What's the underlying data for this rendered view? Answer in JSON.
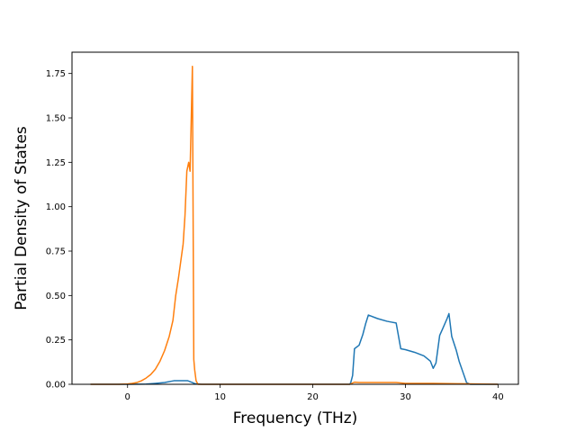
{
  "chart_data": {
    "type": "line",
    "title": "",
    "xlabel": "Frequency (THz)",
    "ylabel": "Partial Density of States",
    "xlim": [
      -6,
      42.2
    ],
    "ylim": [
      0,
      1.87
    ],
    "xticks": [
      0,
      10,
      20,
      30,
      40
    ],
    "xtick_labels": [
      "0",
      "10",
      "20",
      "30",
      "40"
    ],
    "yticks": [
      0,
      0.25,
      0.5,
      0.75,
      1.0,
      1.25,
      1.5,
      1.75
    ],
    "ytick_labels": [
      "0.00",
      "0.25",
      "0.50",
      "0.75",
      "1.00",
      "1.25",
      "1.50",
      "1.75"
    ],
    "grid": false,
    "legend": false,
    "series": [
      {
        "color": "#1f77b4",
        "x": [
          -4,
          0,
          2,
          3,
          4,
          5,
          6,
          6.5,
          7,
          7.3,
          8,
          10,
          15,
          20,
          24,
          24.1,
          24.3,
          24.5,
          25,
          25.4,
          25.7,
          26,
          27,
          28,
          28.5,
          29,
          29.5,
          30,
          31,
          32,
          32.7,
          33,
          33.3,
          33.7,
          34,
          34.5,
          34.7,
          35,
          35.5,
          35.8,
          36.2,
          36.6,
          37,
          40
        ],
        "y": [
          0,
          0,
          0.001,
          0.005,
          0.01,
          0.02,
          0.02,
          0.02,
          0.01,
          0.003,
          0,
          0,
          0,
          0,
          0,
          0.01,
          0.05,
          0.2,
          0.22,
          0.28,
          0.34,
          0.39,
          0.37,
          0.355,
          0.35,
          0.345,
          0.2,
          0.195,
          0.18,
          0.16,
          0.13,
          0.09,
          0.12,
          0.275,
          0.31,
          0.37,
          0.398,
          0.27,
          0.19,
          0.13,
          0.07,
          0.01,
          0,
          0
        ]
      },
      {
        "color": "#ff7f0e",
        "x": [
          -4,
          -1,
          0,
          0.5,
          1,
          1.5,
          2,
          2.5,
          3,
          3.5,
          4,
          4.5,
          4.9,
          5.2,
          5.5,
          6,
          6.2,
          6.4,
          6.6,
          6.75,
          6.9,
          7.0,
          7.15,
          7.25,
          7.4,
          7.6,
          8,
          10,
          15,
          20,
          24,
          24.5,
          25,
          27,
          29,
          30,
          33,
          36,
          40
        ],
        "y": [
          0,
          0,
          0.002,
          0.005,
          0.01,
          0.02,
          0.035,
          0.055,
          0.085,
          0.13,
          0.19,
          0.27,
          0.36,
          0.5,
          0.6,
          0.79,
          0.95,
          1.2,
          1.25,
          1.2,
          1.55,
          1.79,
          0.14,
          0.08,
          0.02,
          0,
          0,
          0,
          0,
          0,
          0,
          0.012,
          0.01,
          0.01,
          0.01,
          0.005,
          0.005,
          0.003,
          0
        ]
      }
    ]
  }
}
